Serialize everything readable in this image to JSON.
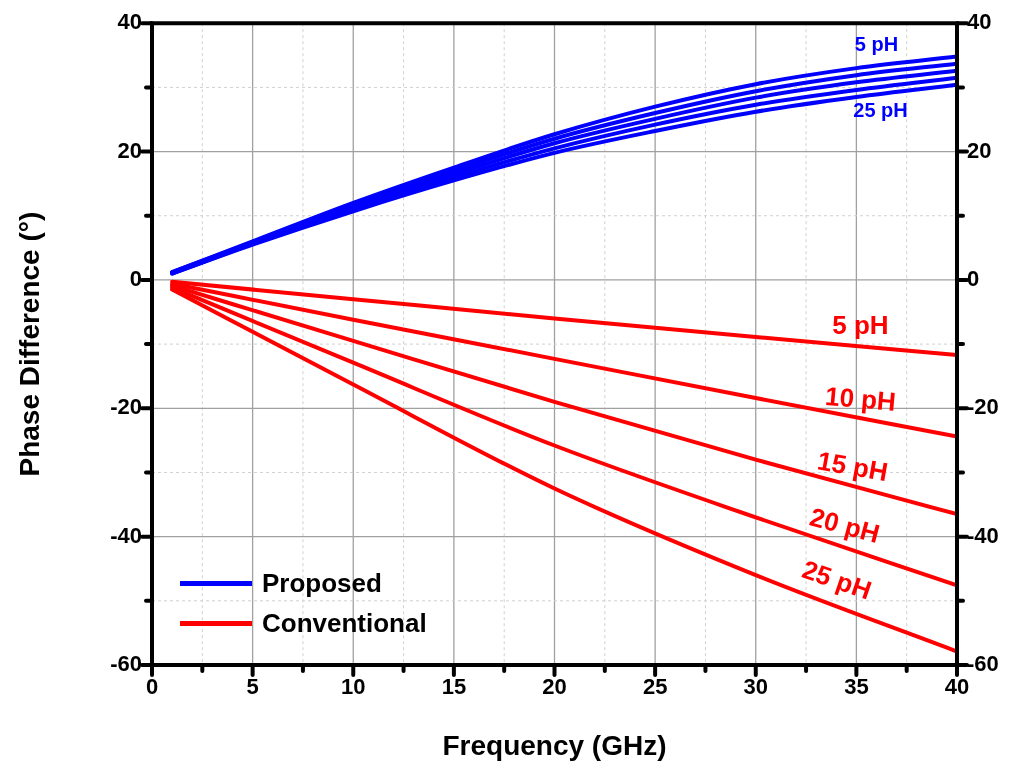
{
  "chart_data": {
    "type": "line",
    "xlabel": "Frequency (GHz)",
    "ylabel": "Phase Difference (°)",
    "xlim": [
      0,
      40
    ],
    "xticks": [
      0,
      {
        "value": 2.5,
        "label": null
      },
      5,
      {
        "value": 7.5,
        "label": null
      },
      10,
      {
        "value": 12.5,
        "label": null
      },
      15,
      {
        "value": 17.5,
        "label": null
      },
      20,
      {
        "value": 22.5,
        "label": null
      },
      25,
      {
        "value": 27.5,
        "label": null
      },
      30,
      {
        "value": 32.5,
        "label": null
      },
      35,
      {
        "value": 37.5,
        "label": null
      },
      40
    ],
    "ylim": [
      -60,
      40
    ],
    "yticks": [
      -60,
      {
        "value": -50,
        "label": null
      },
      -40,
      {
        "value": -30,
        "label": null
      },
      -20,
      {
        "value": -10,
        "label": null
      },
      0,
      {
        "value": 10,
        "label": null
      },
      20,
      {
        "value": 30,
        "label": null
      },
      40
    ],
    "y2lim": [
      -60,
      40
    ],
    "y2ticks": [
      -60,
      {
        "value": -50,
        "label": null
      },
      -40,
      {
        "value": -30,
        "label": null
      },
      -20,
      {
        "value": -10,
        "label": null
      },
      0,
      {
        "value": 10,
        "label": null
      },
      20,
      {
        "value": 30,
        "label": null
      },
      40
    ],
    "grid": true,
    "legend": "bottom left",
    "line_style": "solid",
    "marker": "none",
    "x": [
      1,
      5,
      10,
      15,
      20,
      25,
      30,
      35,
      40
    ],
    "series": [
      {
        "name": "Proposed",
        "color": "#0000ff",
        "values": [
          1.2,
          6,
          12,
          17.5,
          22.7,
          27,
          30.5,
          33,
          34.8
        ]
      },
      {
        "color": "#0000ff",
        "values": [
          1.2,
          5.9,
          11.7,
          17,
          22,
          26,
          29.4,
          31.9,
          33.7
        ]
      },
      {
        "color": "#0000ff",
        "values": [
          1.1,
          5.8,
          11.4,
          16.5,
          21.3,
          25.1,
          28.4,
          30.8,
          32.6
        ]
      },
      {
        "color": "#0000ff",
        "values": [
          1.0,
          5.6,
          11,
          16,
          20.5,
          24.2,
          27.3,
          29.6,
          31.5
        ]
      },
      {
        "color": "#0000ff",
        "values": [
          1,
          5.5,
          10.7,
          15.5,
          19.8,
          23.2,
          26.2,
          28.5,
          30.4
        ]
      },
      {
        "name": "Conventional",
        "color": "#ff0000",
        "x": [
          1,
          10,
          20,
          30,
          40
        ],
        "values": [
          -0.3,
          -3,
          -6,
          -8.9,
          -11.7
        ]
      },
      {
        "color": "#ff0000",
        "x": [
          1,
          10,
          20,
          30,
          40
        ],
        "values": [
          -0.6,
          -6.2,
          -12.3,
          -18.4,
          -24.4
        ]
      },
      {
        "color": "#ff0000",
        "x": [
          1,
          10,
          20,
          30,
          40
        ],
        "values": [
          -0.9,
          -9.5,
          -19,
          -28,
          -36.5
        ]
      },
      {
        "color": "#ff0000",
        "x": [
          1,
          10,
          20,
          30,
          40
        ],
        "values": [
          -1.2,
          -12.9,
          -25.8,
          -37,
          -47.6
        ]
      },
      {
        "color": "#ff0000",
        "x": [
          1,
          10,
          20,
          30,
          40
        ],
        "values": [
          -1.5,
          -16.3,
          -32.5,
          -46,
          -57.9
        ]
      }
    ],
    "annotations": [
      "5 pH",
      "25 pH",
      "5 pH",
      "10 pH",
      "15 pH",
      "20 pH",
      "25 pH"
    ]
  }
}
